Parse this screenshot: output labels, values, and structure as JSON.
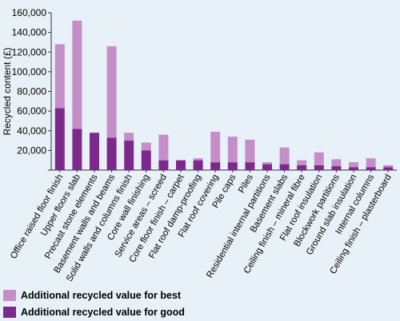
{
  "chart_data": {
    "type": "bar",
    "stacked": true,
    "ylabel": "Recycled content (£)",
    "ylim": [
      0,
      160000
    ],
    "yticks": [
      0,
      20000,
      40000,
      60000,
      80000,
      100000,
      120000,
      140000,
      160000
    ],
    "ytick_labels": [
      "",
      "20,000",
      "40,000",
      "60,000",
      "80,000",
      "100,000",
      "120,000",
      "140,000",
      "160,000"
    ],
    "grid": false,
    "legend_position": "bottom-left",
    "categories": [
      "Office raised floor finish",
      "Upper floors slab",
      "Precast stone elements",
      "Basement walls and beams",
      "Solid walls and columns finish",
      "Core wall finishing",
      "Service areas – screed",
      "Core floor finish – carpet",
      "Flat roof damp-proofing",
      "Flat roof covering",
      "Pile caps",
      "Piles",
      "Residential internal partitions",
      "Basement slabs",
      "Ceiling finish – mineral fibre",
      "Flat roof insulation",
      "Blockwork partitions",
      "Ground slab insulation",
      "Internal columns",
      "Ceiling finish – plasterboard"
    ],
    "series": [
      {
        "name": "Additional recycled value for good",
        "color": "#7b2a8c",
        "values": [
          63000,
          42000,
          38000,
          33000,
          30000,
          20000,
          10000,
          10000,
          10000,
          8000,
          8000,
          8000,
          6000,
          6000,
          5000,
          5000,
          4000,
          3000,
          3000,
          3000
        ]
      },
      {
        "name": "Additional recycled value for best",
        "color": "#c48ec9",
        "values": [
          65000,
          110000,
          0,
          93000,
          8000,
          8000,
          26000,
          0,
          2000,
          31000,
          26000,
          23000,
          2000,
          17000,
          5000,
          13000,
          7000,
          5000,
          9000,
          2000
        ]
      }
    ],
    "legend_order": [
      "Additional recycled value for best",
      "Additional recycled value for good"
    ]
  }
}
